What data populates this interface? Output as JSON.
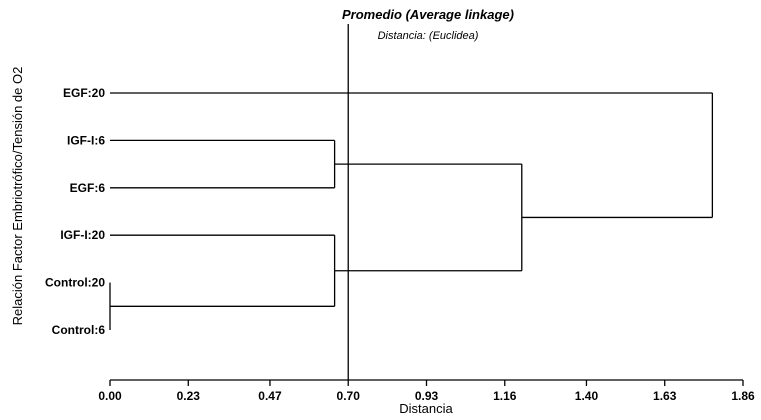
{
  "chart_data": {
    "type": "dendrogram",
    "title": "Promedio (Average linkage)",
    "subtitle": "Distancia: (Euclidea)",
    "xlabel": "Distancia",
    "ylabel": "Relación Factor Embriotrófico/Tensión de O2",
    "x_ticks": [
      "0.00",
      "0.23",
      "0.47",
      "0.70",
      "0.93",
      "1.16",
      "1.40",
      "1.63",
      "1.86"
    ],
    "xlim": [
      0,
      1.86
    ],
    "cut_line": 0.7,
    "leaves": [
      "EGF:20",
      "IGF-I:6",
      "EGF:6",
      "IGF-I:20",
      "Control:20",
      "Control:6"
    ],
    "merges": [
      {
        "a": "Control:20",
        "b": "Control:6",
        "height": 0.0
      },
      {
        "a": "IGF-I:6",
        "b": "EGF:6",
        "height": 0.66
      },
      {
        "a": "IGF-I:20",
        "b": "Control:20 + Control:6",
        "height": 0.66
      },
      {
        "a": "IGF-I:6 + EGF:6",
        "b": "IGF-I:20 + Control:20 + Control:6",
        "height": 1.21
      },
      {
        "a": "EGF:20",
        "b": "IGF-I:6 + EGF:6 + IGF-I:20 + Control:20 + Control:6",
        "height": 1.77
      }
    ]
  }
}
